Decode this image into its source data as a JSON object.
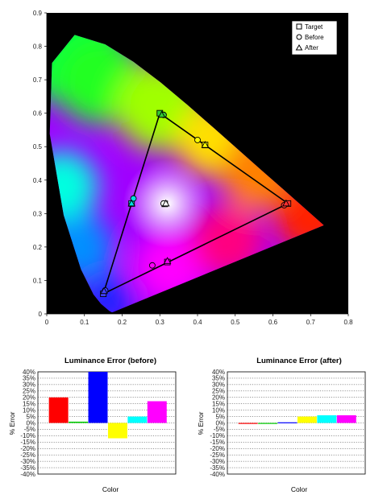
{
  "chart_data": [
    {
      "type": "scatter",
      "title": "",
      "xlabel": "",
      "ylabel": "",
      "xlim": [
        0,
        0.8
      ],
      "ylim": [
        0,
        0.9
      ],
      "x_ticks": [
        "0",
        "0.1",
        "0.2",
        "0.3",
        "0.4",
        "0.5",
        "0.6",
        "0.7",
        "0.8"
      ],
      "y_ticks": [
        "0",
        "0.1",
        "0.2",
        "0.3",
        "0.4",
        "0.5",
        "0.6",
        "0.7",
        "0.8",
        "0.9"
      ],
      "legend_position": "top-right",
      "series": [
        {
          "name": "Target",
          "marker": "square",
          "points": [
            {
              "label": "red",
              "x": 0.64,
              "y": 0.33,
              "color": "#ff3030"
            },
            {
              "label": "green",
              "x": 0.3,
              "y": 0.6,
              "color": "#33cc33"
            },
            {
              "label": "blue",
              "x": 0.15,
              "y": 0.06,
              "color": "#4040ff"
            },
            {
              "label": "yellow",
              "x": 0.42,
              "y": 0.505,
              "color": "#ffff00"
            },
            {
              "label": "cyan",
              "x": 0.225,
              "y": 0.33,
              "color": "#00e0e0"
            },
            {
              "label": "magenta",
              "x": 0.32,
              "y": 0.155,
              "color": "#ff00ff"
            },
            {
              "label": "white",
              "x": 0.313,
              "y": 0.329,
              "color": "#ffffff"
            }
          ]
        },
        {
          "name": "Before",
          "marker": "circle",
          "points": [
            {
              "label": "red",
              "x": 0.63,
              "y": 0.325,
              "color": "#ff3030"
            },
            {
              "label": "green",
              "x": 0.31,
              "y": 0.595,
              "color": "#33cc33"
            },
            {
              "label": "blue",
              "x": 0.155,
              "y": 0.07,
              "color": "#4040ff"
            },
            {
              "label": "yellow",
              "x": 0.4,
              "y": 0.52,
              "color": "#ffff00"
            },
            {
              "label": "cyan",
              "x": 0.23,
              "y": 0.345,
              "color": "#00e0e0"
            },
            {
              "label": "magenta",
              "x": 0.28,
              "y": 0.145,
              "color": "#ff00ff"
            },
            {
              "label": "white",
              "x": 0.31,
              "y": 0.33,
              "color": "#ffffff"
            }
          ]
        },
        {
          "name": "After",
          "marker": "triangle",
          "points": [
            {
              "label": "red",
              "x": 0.635,
              "y": 0.33,
              "color": "#ff3030"
            },
            {
              "label": "green",
              "x": 0.305,
              "y": 0.595,
              "color": "#33cc33"
            },
            {
              "label": "blue",
              "x": 0.152,
              "y": 0.068,
              "color": "#4040ff"
            },
            {
              "label": "yellow",
              "x": 0.42,
              "y": 0.505,
              "color": "#ffff00"
            },
            {
              "label": "cyan",
              "x": 0.225,
              "y": 0.33,
              "color": "#00e0e0"
            },
            {
              "label": "magenta",
              "x": 0.32,
              "y": 0.158,
              "color": "#ff00ff"
            },
            {
              "label": "white",
              "x": 0.316,
              "y": 0.33,
              "color": "#ffffff"
            }
          ]
        }
      ],
      "triangle_path": [
        [
          0.64,
          0.33
        ],
        [
          0.3,
          0.6
        ],
        [
          0.15,
          0.06
        ]
      ]
    },
    {
      "type": "bar",
      "title": "Luminance Error (before)",
      "xlabel": "Color",
      "ylabel": "% Error",
      "ylim": [
        -40,
        40
      ],
      "y_ticks": [
        "40%",
        "35%",
        "30%",
        "25%",
        "20%",
        "15%",
        "10%",
        "5%",
        "0%",
        "-5%",
        "-10%",
        "-15%",
        "-20%",
        "-25%",
        "-30%",
        "-35%",
        "-40%"
      ],
      "categories": [
        "red",
        "green",
        "blue",
        "yellow",
        "cyan",
        "magenta"
      ],
      "colors": [
        "#ff0000",
        "#00cc00",
        "#0000ff",
        "#ffff00",
        "#00ffff",
        "#ff00ff"
      ],
      "values": [
        20,
        1,
        40,
        -12,
        5,
        17
      ]
    },
    {
      "type": "bar",
      "title": "Luminance Error (after)",
      "xlabel": "Color",
      "ylabel": "% Error",
      "ylim": [
        -40,
        40
      ],
      "y_ticks": [
        "40%",
        "35%",
        "30%",
        "25%",
        "20%",
        "15%",
        "10%",
        "5%",
        "0%",
        "-5%",
        "-10%",
        "-15%",
        "-20%",
        "-25%",
        "-30%",
        "-35%",
        "-40%"
      ],
      "categories": [
        "red",
        "green",
        "blue",
        "yellow",
        "cyan",
        "magenta"
      ],
      "colors": [
        "#ff0000",
        "#00cc00",
        "#0000ff",
        "#ffff00",
        "#00ffff",
        "#ff00ff"
      ],
      "values": [
        -0.5,
        -0.5,
        0.5,
        5,
        6,
        6
      ]
    }
  ]
}
